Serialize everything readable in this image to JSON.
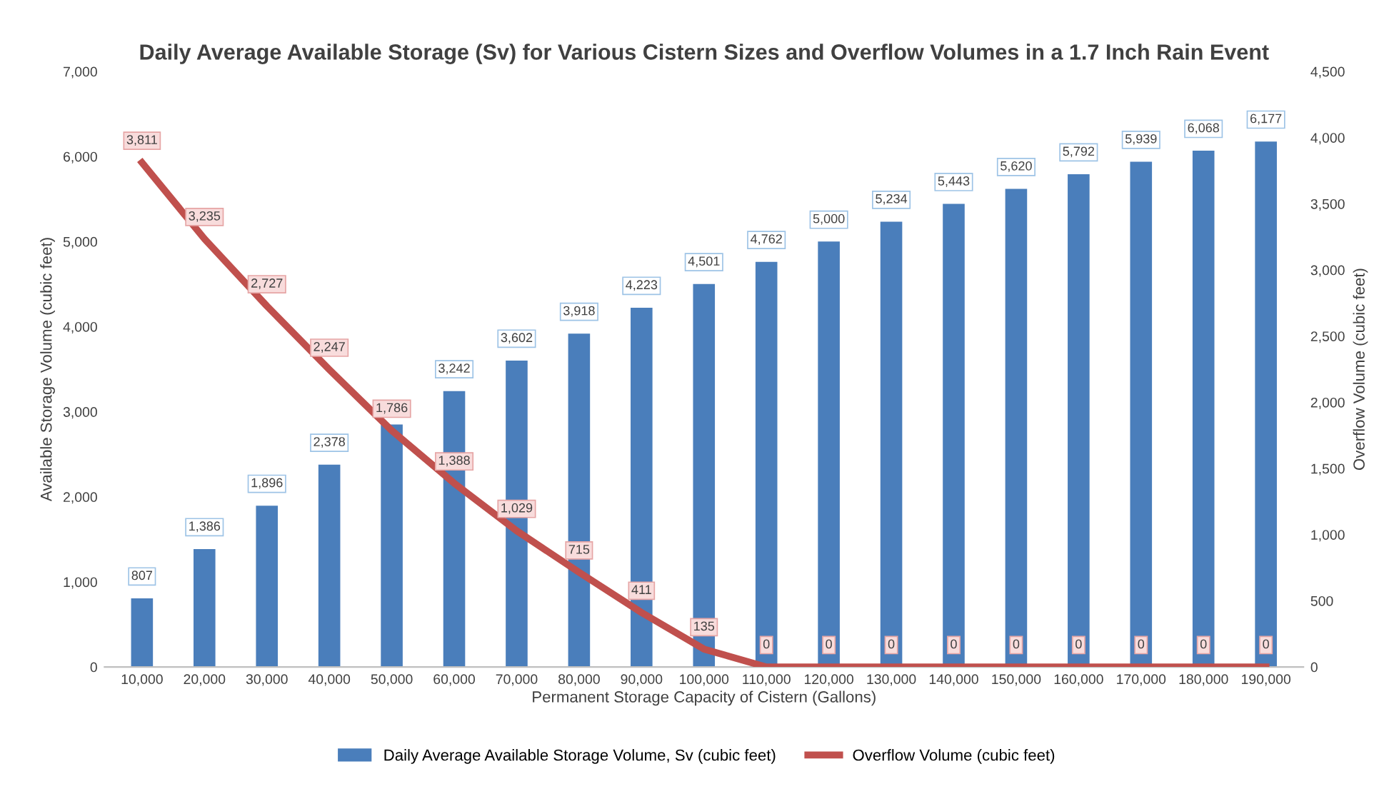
{
  "chart_data": {
    "type": "bar",
    "title": "Daily Average Available Storage (Sv) for Various Cistern Sizes and Overflow Volumes in a 1.7 Inch Rain Event",
    "xlabel": "Permanent Storage Capacity of Cistern (Gallons)",
    "ylabel": "Available Storage Volume (cubic feet)",
    "y2label": "Overflow Volume (cubic feet)",
    "categories": [
      "10,000",
      "20,000",
      "30,000",
      "40,000",
      "50,000",
      "60,000",
      "70,000",
      "80,000",
      "90,000",
      "100,000",
      "110,000",
      "120,000",
      "130,000",
      "140,000",
      "150,000",
      "160,000",
      "170,000",
      "180,000",
      "190,000"
    ],
    "series": [
      {
        "name": "Daily Average Available Storage Volume, Sv (cubic feet)",
        "color": "#4a7ebb",
        "values": [
          807,
          1386,
          1896,
          2378,
          2850,
          3242,
          3602,
          3918,
          4223,
          4501,
          4762,
          5000,
          5234,
          5443,
          5620,
          5792,
          5939,
          6068,
          6177
        ],
        "value_labels": [
          "807",
          "1,386",
          "1,896",
          "2,378",
          null,
          "3,242",
          "3,602",
          "3,918",
          "4,223",
          "4,501",
          "4,762",
          "5,000",
          "5,234",
          "5,443",
          "5,620",
          "5,792",
          "5,939",
          "6,068",
          "6,177"
        ]
      },
      {
        "name": "Overflow Volume (cubic feet)",
        "type": "line",
        "axis": "y2",
        "color": "#c0504d",
        "values": [
          3811,
          3235,
          2727,
          2247,
          1786,
          1388,
          1029,
          715,
          411,
          135,
          0,
          0,
          0,
          0,
          0,
          0,
          0,
          0,
          0
        ],
        "value_labels": [
          "3,811",
          "3,235",
          "2,727",
          "2,247",
          "1,786",
          "1,388",
          "1,029",
          "715",
          "411",
          "135",
          "0",
          "0",
          "0",
          "0",
          "0",
          "0",
          "0",
          "0",
          "0"
        ]
      }
    ],
    "ylim": [
      0,
      7000
    ],
    "yticks": [
      {
        "value": 0,
        "label": "0"
      },
      {
        "value": 1000,
        "label": "1,000"
      },
      {
        "value": 2000,
        "label": "2,000"
      },
      {
        "value": 3000,
        "label": "3,000"
      },
      {
        "value": 4000,
        "label": "4,000"
      },
      {
        "value": 5000,
        "label": "5,000"
      },
      {
        "value": 6000,
        "label": "6,000"
      },
      {
        "value": 7000,
        "label": "7,000"
      }
    ],
    "y2lim": [
      0,
      4500
    ],
    "y2ticks": [
      0,
      500,
      {
        "value": 1000,
        "label": "1,000"
      },
      {
        "value": 1500,
        "label": "1,500"
      },
      {
        "value": 2000,
        "label": "2,000"
      },
      {
        "value": 2500,
        "label": "2,500"
      },
      {
        "value": 3000,
        "label": "3,000"
      },
      {
        "value": 3500,
        "label": "3,500"
      },
      {
        "value": 4000,
        "label": "4,000"
      },
      {
        "value": 4500,
        "label": "4,500"
      }
    ],
    "grid": false,
    "legend": "bottom",
    "marker": "none",
    "line_style": "solid"
  }
}
